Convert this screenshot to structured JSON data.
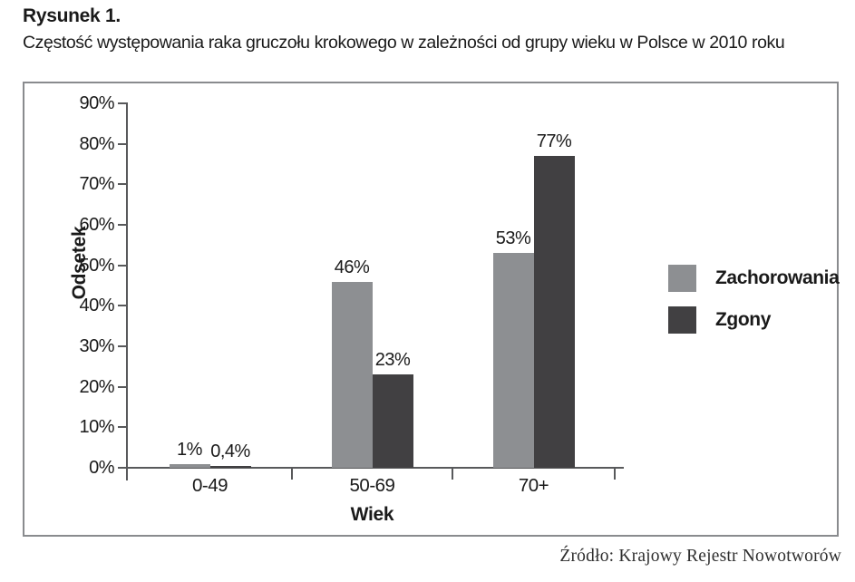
{
  "figure": {
    "label": "Rysunek 1.",
    "title": "Częstość występowania raka gruczołu krokowego w zależności od grupy wieku w Polsce w 2010 roku"
  },
  "source": "Źródło: Krajowy Rejestr Nowotworów",
  "chart_data": {
    "type": "bar",
    "title": "Częstość występowania raka gruczołu krokowego w zależności od grupy wieku w Polsce w 2010 roku",
    "categories": [
      "0-49",
      "50-69",
      "70+"
    ],
    "series": [
      {
        "name": "Zachorowania",
        "values": [
          1,
          46,
          53
        ],
        "value_labels": [
          "1%",
          "46%",
          "53%"
        ],
        "color": "#8d8f92"
      },
      {
        "name": "Zgony",
        "values": [
          0.4,
          23,
          77
        ],
        "value_labels": [
          "0,4%",
          "23%",
          "77%"
        ],
        "color": "#414042"
      }
    ],
    "xlabel": "Wiek",
    "ylabel": "Odsetek",
    "ylim": [
      0,
      90
    ],
    "ytick_step": 10,
    "ytick_labels": [
      "0%",
      "10%",
      "20%",
      "30%",
      "40%",
      "50%",
      "60%",
      "70%",
      "80%",
      "90%"
    ],
    "grid": false,
    "legend_position": "right",
    "axis_color": "#58595b"
  }
}
